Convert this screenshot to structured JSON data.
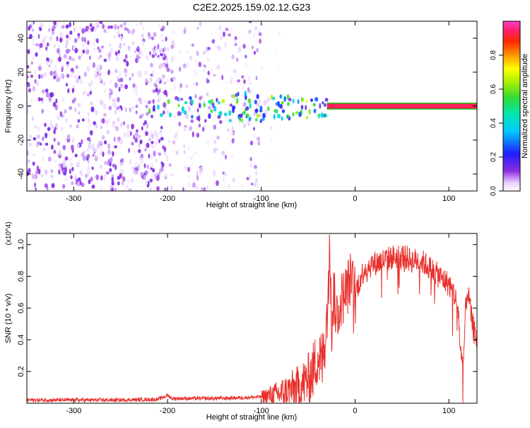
{
  "title": "C2E2.2025.159.02.12.G23",
  "colors": {
    "snr_line": "#e8302c",
    "signal_band_core": "#ff1e5a",
    "signal_band_edge": "#14c814",
    "frame": "#000000"
  },
  "chart_data": [
    {
      "type": "heatmap",
      "title": "C2E2.2025.159.02.12.G23",
      "xlabel": "Height of straight line (km)",
      "ylabel": "Frequency (Hz)",
      "xlim": [
        -350,
        130
      ],
      "ylim": [
        -50,
        50
      ],
      "xticks": [
        -300,
        -200,
        -100,
        0,
        100
      ],
      "yticks": [
        -40,
        -20,
        0,
        20,
        40
      ],
      "grid": false,
      "colorbar": {
        "label": "Normalized spectral amplitude",
        "range": [
          0.0,
          1.0
        ],
        "ticks": [
          0.0,
          0.2,
          0.4,
          0.6,
          0.8
        ],
        "colormap": "rainbow (violet-blue-cyan-green-yellow-red-magenta)"
      },
      "regions": [
        {
          "x_range": [
            -350,
            -200
          ],
          "freq_range": [
            -50,
            50
          ],
          "amplitude_approx": [
            0.02,
            0.15
          ],
          "description": "dense noise speckle"
        },
        {
          "x_range": [
            -200,
            -100
          ],
          "freq_range": [
            -50,
            50
          ],
          "amplitude_approx": [
            0.01,
            0.12
          ],
          "description": "sparser noise speckle"
        },
        {
          "x_range": [
            -100,
            -80
          ],
          "freq_range": [
            -50,
            50
          ],
          "amplitude_approx": [
            0.0,
            0.05
          ],
          "description": "faint noise"
        },
        {
          "x_range": [
            -220,
            -30
          ],
          "freq_range": [
            -10,
            8
          ],
          "amplitude_approx": [
            0.1,
            0.6
          ],
          "description": "emerging signal blob"
        },
        {
          "x_range": [
            -30,
            130
          ],
          "freq_range": [
            -1,
            1
          ],
          "amplitude_approx": [
            0.9,
            1.0
          ],
          "description": "strong narrow signal band near 0 Hz"
        }
      ]
    },
    {
      "type": "line",
      "xlabel": "Height of straight line (km)",
      "ylabel": "SNR (10 * v/v)",
      "y_multiplier": "(x10^4)",
      "xlim": [
        -350,
        130
      ],
      "ylim": [
        0,
        1.07
      ],
      "xticks": [
        -300,
        -200,
        -100,
        0,
        100
      ],
      "yticks": [
        0.2,
        0.4,
        0.6,
        0.8,
        1.0
      ],
      "grid": false,
      "series": [
        {
          "x": [
            -350,
            -300,
            -250,
            -210,
            -200,
            -195,
            -150,
            -120,
            -100,
            -80,
            -60,
            -50,
            -45,
            -40,
            -35,
            -30,
            -27,
            -25,
            -23,
            -20,
            -15,
            -10,
            -5,
            0,
            10,
            20,
            30,
            40,
            50,
            60,
            70,
            80,
            90,
            100,
            105,
            110,
            112,
            115,
            118,
            120,
            125,
            130
          ],
          "y": [
            0.02,
            0.02,
            0.02,
            0.025,
            0.05,
            0.03,
            0.03,
            0.035,
            0.04,
            0.06,
            0.1,
            0.15,
            0.2,
            0.3,
            0.25,
            0.55,
            1.05,
            0.45,
            0.7,
            0.55,
            0.65,
            0.7,
            0.78,
            0.7,
            0.85,
            0.88,
            0.9,
            0.92,
            0.93,
            0.9,
            0.9,
            0.85,
            0.8,
            0.75,
            0.7,
            0.6,
            0.35,
            0.2,
            0.6,
            0.72,
            0.5,
            0.4
          ]
        }
      ]
    }
  ]
}
